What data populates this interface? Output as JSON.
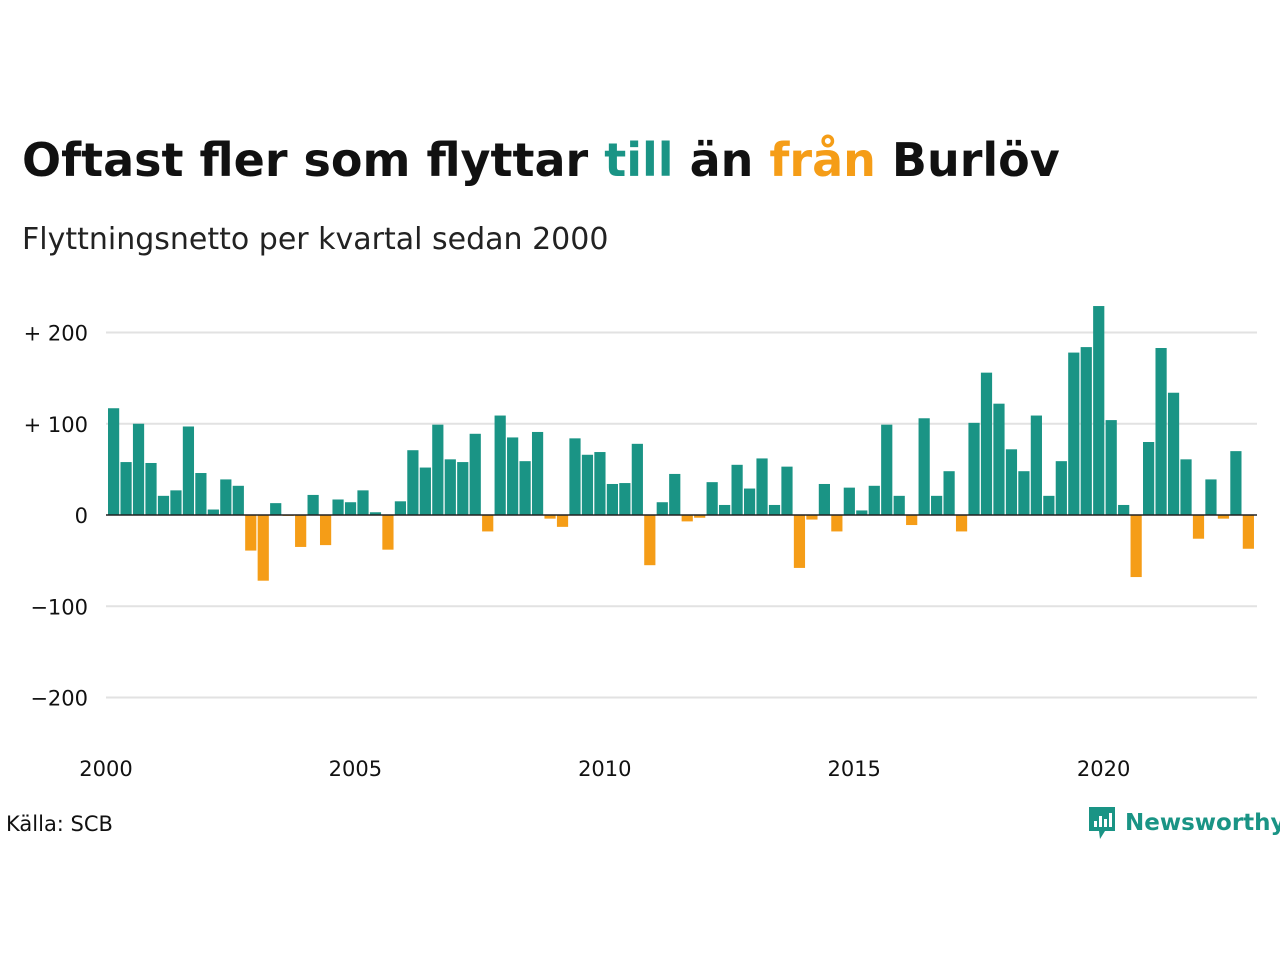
{
  "title": {
    "before": "Oftast fler som flyttar ",
    "positive_word": "till",
    "middle": " än ",
    "negative_word": "från",
    "after": " Burlöv"
  },
  "subtitle": "Flyttningsnetto per kvartal sedan 2000",
  "source": "Källa: SCB",
  "brand": {
    "name": "Newsworthy",
    "icon": "newsworthy-logo-icon"
  },
  "colors": {
    "positive": "#1a9485",
    "negative": "#f59d17",
    "grid": "#e2e2e2",
    "zero_line": "#222222",
    "text": "#111111"
  },
  "chart_data": {
    "type": "bar",
    "title": "Oftast fler som flyttar till än från Burlöv",
    "subtitle": "Flyttningsnetto per kvartal sedan 2000",
    "xlabel": "",
    "ylabel": "",
    "start_year": 2000,
    "periods_per_year": 4,
    "x_ticks": [
      "2000",
      "2005",
      "2010",
      "2015",
      "2020"
    ],
    "y_ticks": [
      {
        "value": 200,
        "label": "+ 200"
      },
      {
        "value": 100,
        "label": "+ 100"
      },
      {
        "value": 0,
        "label": "0"
      },
      {
        "value": -100,
        "label": "−100"
      },
      {
        "value": -200,
        "label": "−200"
      }
    ],
    "ylim": [
      -240,
      245
    ],
    "grid": true,
    "values": [
      117,
      58,
      100,
      57,
      21,
      27,
      97,
      46,
      6,
      39,
      32,
      -39,
      -72,
      13,
      -1,
      -35,
      22,
      -33,
      17,
      14,
      27,
      3,
      -38,
      15,
      71,
      52,
      99,
      61,
      58,
      89,
      -18,
      109,
      85,
      59,
      91,
      -4,
      -13,
      84,
      66,
      69,
      34,
      35,
      78,
      -55,
      14,
      45,
      -7,
      -3,
      36,
      11,
      55,
      29,
      62,
      11,
      53,
      -58,
      -5,
      34,
      -18,
      30,
      5,
      32,
      99,
      21,
      -11,
      106,
      21,
      48,
      -18,
      101,
      156,
      122,
      72,
      48,
      109,
      21,
      59,
      178,
      184,
      229,
      104,
      11,
      -68,
      80,
      183,
      134,
      61,
      -26,
      39,
      -4,
      70,
      -37
    ]
  }
}
